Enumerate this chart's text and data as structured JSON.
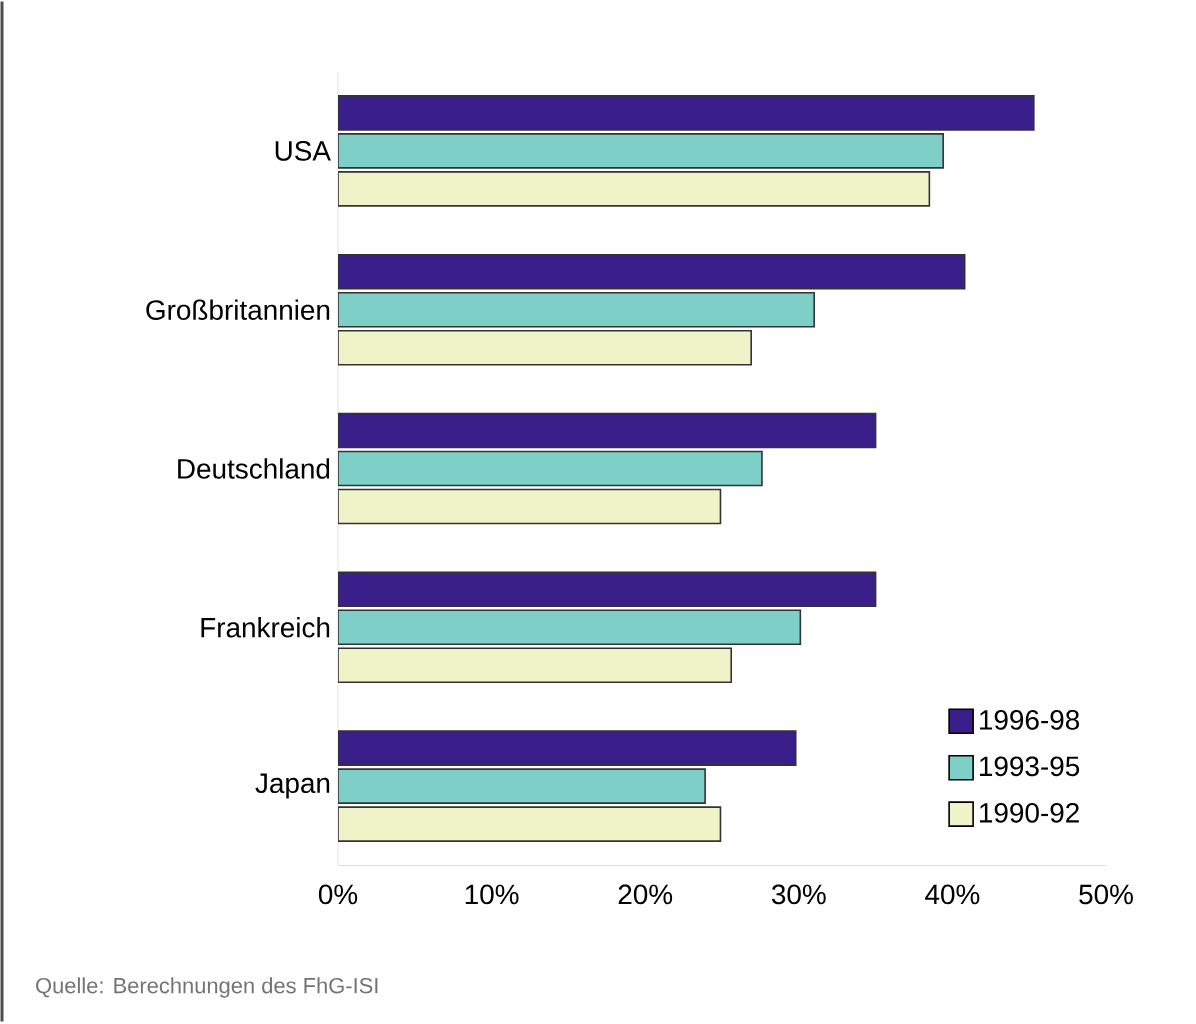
{
  "chart_data": {
    "type": "bar",
    "orientation": "horizontal",
    "categories": [
      "USA",
      "Großbritannien",
      "Deutschland",
      "Frankreich",
      "Japan"
    ],
    "series": [
      {
        "name": "1996-98",
        "color": "#3a1f8a",
        "values": [
          45.3,
          40.8,
          35.0,
          35.0,
          29.8
        ]
      },
      {
        "name": "1993-95",
        "color": "#7ecfc8",
        "values": [
          39.4,
          31.0,
          27.6,
          30.1,
          23.9
        ]
      },
      {
        "name": "1990-92",
        "color": "#eef3c8",
        "values": [
          38.5,
          26.9,
          24.9,
          25.6,
          24.9
        ]
      }
    ],
    "xlim": [
      0,
      50
    ],
    "xticks": [
      {
        "value": 0,
        "label": "0%"
      },
      {
        "value": 10,
        "label": "10%"
      },
      {
        "value": 20,
        "label": "20%"
      },
      {
        "value": 30,
        "label": "30%"
      },
      {
        "value": 40,
        "label": "40%"
      },
      {
        "value": 50,
        "label": "50%"
      }
    ],
    "grid": false,
    "legend": "bottom right",
    "annotations": [
      "Quelle: Berechnungen des FhG-ISI"
    ]
  }
}
